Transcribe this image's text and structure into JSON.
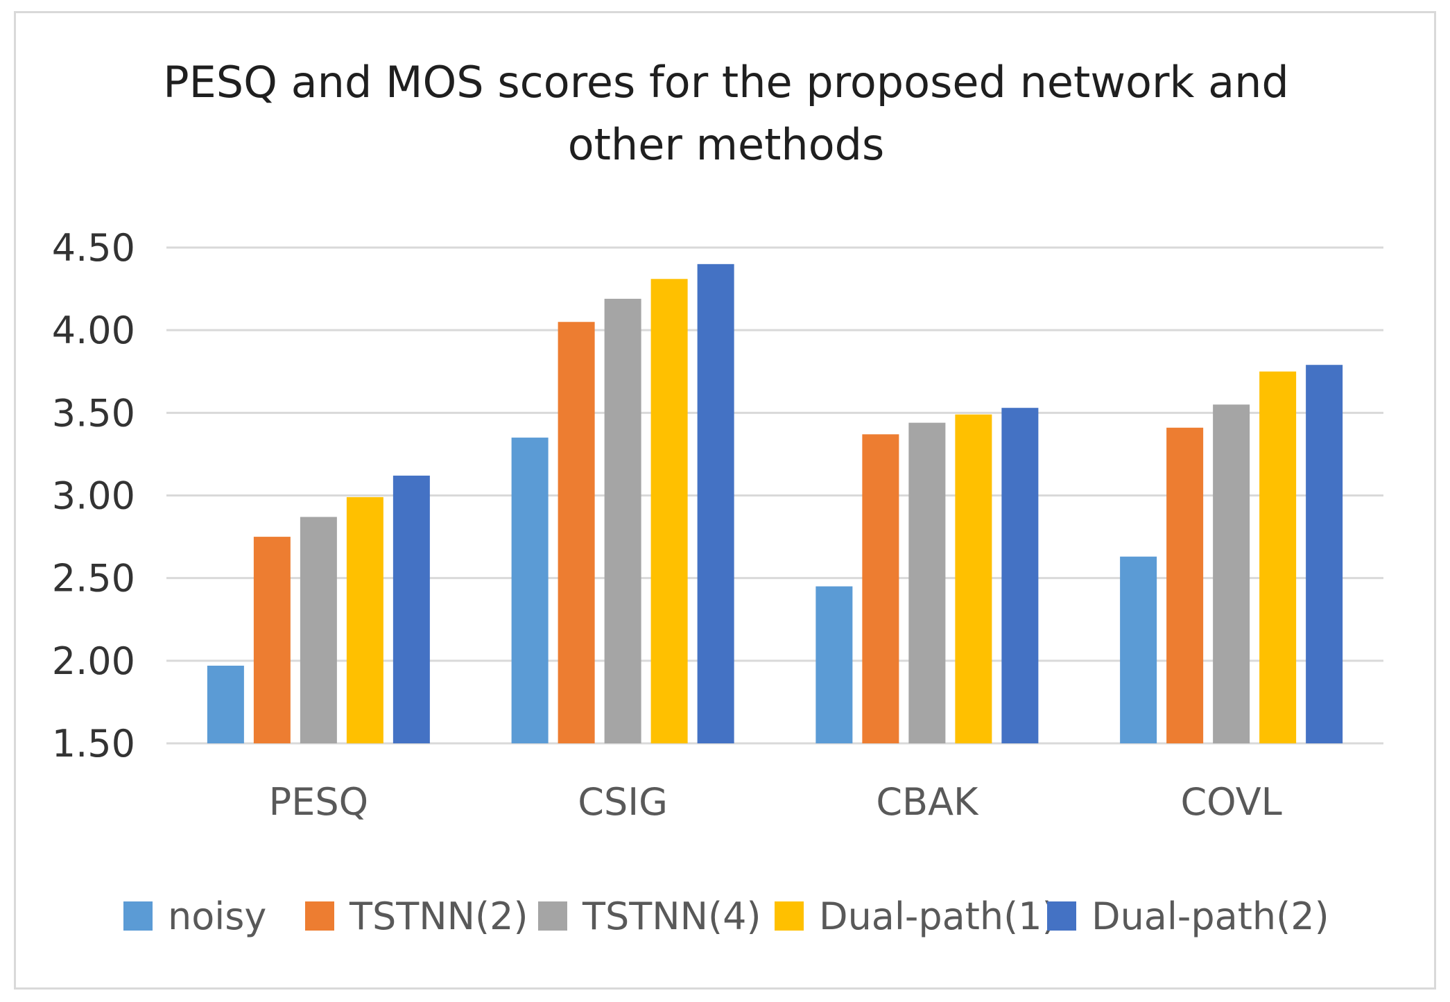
{
  "chart_data": {
    "type": "bar",
    "title_lines": [
      "PESQ and MOS scores for the proposed network and",
      "other methods"
    ],
    "categories": [
      "PESQ",
      "CSIG",
      "CBAK",
      "COVL"
    ],
    "series": [
      {
        "name": "noisy",
        "color": "#5b9bd5",
        "values": [
          1.97,
          3.35,
          2.45,
          2.63
        ]
      },
      {
        "name": "TSTNN(2)",
        "color": "#ed7d31",
        "values": [
          2.75,
          4.05,
          3.37,
          3.41
        ]
      },
      {
        "name": "TSTNN(4)",
        "color": "#a5a5a5",
        "values": [
          2.87,
          4.19,
          3.44,
          3.55
        ]
      },
      {
        "name": "Dual-path(1)",
        "color": "#ffc000",
        "values": [
          2.99,
          4.31,
          3.49,
          3.75
        ]
      },
      {
        "name": "Dual-path(2)",
        "color": "#4472c4",
        "values": [
          3.12,
          4.4,
          3.53,
          3.79
        ]
      }
    ],
    "ylim": [
      1.5,
      4.5
    ],
    "yticks": [
      "1.50",
      "2.00",
      "2.50",
      "3.00",
      "3.50",
      "4.00",
      "4.50"
    ],
    "grid": true,
    "legend_position": "bottom",
    "xlabel": "",
    "ylabel": ""
  }
}
